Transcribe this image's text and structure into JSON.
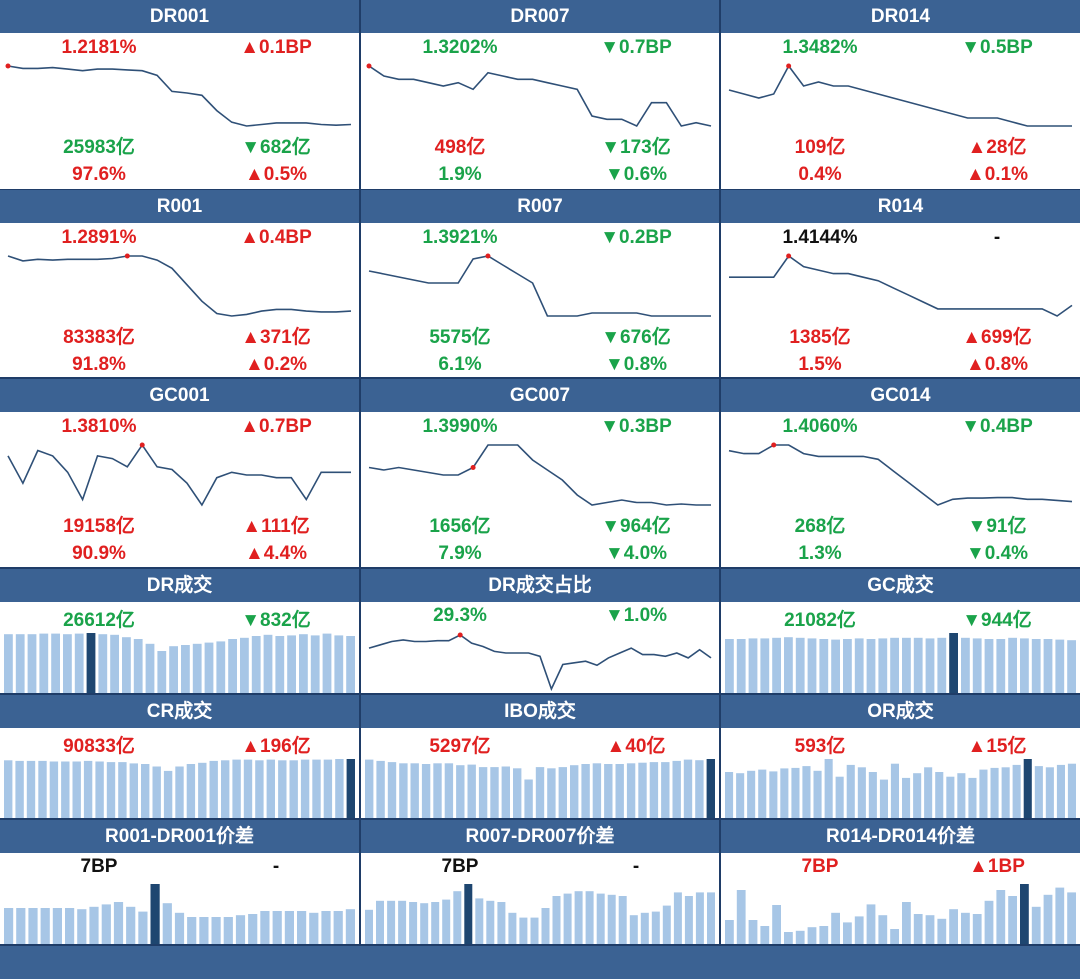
{
  "colors": {
    "header": "#3b6293",
    "bg": "#1f3d68",
    "line": "#2f5077",
    "bar": "#a7c6e6",
    "bar_highlight": "#1e4670",
    "red": "#e02020",
    "green": "#1aa34a",
    "black": "#111111"
  },
  "panels": [
    {
      "id": "dr001",
      "title": "DR001",
      "type": "rate",
      "rate": "1.2181%",
      "rate_color": "red",
      "change": "▲0.1BP",
      "change_color": "red",
      "volume": "25983亿",
      "volume_color": "green",
      "vol_change": "▼682亿",
      "vol_change_color": "green",
      "share": "97.6%",
      "share_color": "red",
      "share_change": "▲0.5%",
      "share_change_color": "red",
      "chart_data": {
        "type": "line",
        "values": [
          1.2181,
          1.215,
          1.215,
          1.216,
          1.214,
          1.212,
          1.214,
          1.214,
          1.213,
          1.212,
          1.206,
          1.185,
          1.183,
          1.18,
          1.16,
          1.145,
          1.14,
          1.142,
          1.144,
          1.144,
          1.144,
          1.142,
          1.141,
          1.142
        ],
        "highlight_index": 0
      }
    },
    {
      "id": "dr007",
      "title": "DR007",
      "type": "rate",
      "rate": "1.3202%",
      "rate_color": "green",
      "change": "▼0.7BP",
      "change_color": "green",
      "volume": "498亿",
      "volume_color": "red",
      "vol_change": "▼173亿",
      "vol_change_color": "green",
      "share": "1.9%",
      "share_color": "green",
      "share_change": "▼0.6%",
      "share_change_color": "green",
      "chart_data": {
        "type": "line",
        "values": [
          1.4,
          1.37,
          1.36,
          1.36,
          1.35,
          1.34,
          1.35,
          1.33,
          1.38,
          1.37,
          1.36,
          1.36,
          1.35,
          1.34,
          1.33,
          1.25,
          1.24,
          1.24,
          1.22,
          1.29,
          1.29,
          1.22,
          1.23,
          1.22
        ],
        "highlight_index": 0
      }
    },
    {
      "id": "dr014",
      "title": "DR014",
      "type": "rate",
      "rate": "1.3482%",
      "rate_color": "green",
      "change": "▼0.5BP",
      "change_color": "green",
      "volume": "109亿",
      "volume_color": "red",
      "vol_change": "▲28亿",
      "vol_change_color": "red",
      "share": "0.4%",
      "share_color": "red",
      "share_change": "▲0.1%",
      "share_change_color": "red",
      "chart_data": {
        "type": "line",
        "values": [
          1.44,
          1.43,
          1.42,
          1.43,
          1.5,
          1.45,
          1.46,
          1.45,
          1.45,
          1.44,
          1.43,
          1.42,
          1.41,
          1.4,
          1.39,
          1.38,
          1.37,
          1.37,
          1.37,
          1.36,
          1.35,
          1.35,
          1.35,
          1.35
        ],
        "highlight_index": 4
      }
    },
    {
      "id": "r001",
      "title": "R001",
      "type": "rate",
      "rate": "1.2891%",
      "rate_color": "red",
      "change": "▲0.4BP",
      "change_color": "red",
      "volume": "83383亿",
      "volume_color": "red",
      "vol_change": "▲371亿",
      "vol_change_color": "red",
      "share": "91.8%",
      "share_color": "red",
      "share_change": "▲0.2%",
      "share_change_color": "red",
      "chart_data": {
        "type": "line",
        "values": [
          1.285,
          1.279,
          1.281,
          1.28,
          1.281,
          1.281,
          1.281,
          1.282,
          1.285,
          1.285,
          1.28,
          1.27,
          1.25,
          1.23,
          1.215,
          1.212,
          1.214,
          1.218,
          1.22,
          1.22,
          1.218,
          1.217,
          1.217,
          1.218
        ],
        "highlight_index": 8
      }
    },
    {
      "id": "r007",
      "title": "R007",
      "type": "rate",
      "rate": "1.3921%",
      "rate_color": "green",
      "change": "▼0.2BP",
      "change_color": "green",
      "volume": "5575亿",
      "volume_color": "green",
      "vol_change": "▼676亿",
      "vol_change_color": "green",
      "share": "6.1%",
      "share_color": "green",
      "share_change": "▼0.8%",
      "share_change_color": "green",
      "chart_data": {
        "type": "line",
        "values": [
          1.45,
          1.44,
          1.43,
          1.42,
          1.41,
          1.41,
          1.41,
          1.49,
          1.5,
          1.47,
          1.44,
          1.41,
          1.3,
          1.3,
          1.3,
          1.31,
          1.31,
          1.31,
          1.31,
          1.3,
          1.3,
          1.3,
          1.3,
          1.3
        ],
        "highlight_index": 8
      }
    },
    {
      "id": "r014",
      "title": "R014",
      "type": "rate",
      "rate": "1.4144%",
      "rate_color": "black",
      "change": "-",
      "change_color": "black",
      "volume": "1385亿",
      "volume_color": "red",
      "vol_change": "▲699亿",
      "vol_change_color": "red",
      "share": "1.5%",
      "share_color": "red",
      "share_change": "▲0.8%",
      "share_change_color": "red",
      "chart_data": {
        "type": "line",
        "values": [
          1.44,
          1.44,
          1.44,
          1.44,
          1.5,
          1.47,
          1.46,
          1.45,
          1.45,
          1.44,
          1.43,
          1.41,
          1.39,
          1.37,
          1.35,
          1.35,
          1.35,
          1.35,
          1.35,
          1.35,
          1.35,
          1.35,
          1.33,
          1.36
        ],
        "highlight_index": 4
      }
    },
    {
      "id": "gc001",
      "title": "GC001",
      "type": "rate",
      "rate": "1.3810%",
      "rate_color": "red",
      "change": "▲0.7BP",
      "change_color": "red",
      "volume": "19158亿",
      "volume_color": "red",
      "vol_change": "▲111亿",
      "vol_change_color": "red",
      "share": "90.9%",
      "share_color": "red",
      "share_change": "▲4.4%",
      "share_change_color": "red",
      "chart_data": {
        "type": "line",
        "values": [
          1.36,
          1.31,
          1.37,
          1.36,
          1.33,
          1.28,
          1.36,
          1.355,
          1.34,
          1.38,
          1.34,
          1.335,
          1.31,
          1.27,
          1.32,
          1.33,
          1.325,
          1.325,
          1.32,
          1.32,
          1.28,
          1.33,
          1.33,
          1.33
        ],
        "highlight_index": 9
      }
    },
    {
      "id": "gc007",
      "title": "GC007",
      "type": "rate",
      "rate": "1.3990%",
      "rate_color": "green",
      "change": "▼0.3BP",
      "change_color": "green",
      "volume": "1656亿",
      "volume_color": "green",
      "vol_change": "▼964亿",
      "vol_change_color": "green",
      "share": "7.9%",
      "share_color": "green",
      "share_change": "▼4.0%",
      "share_change_color": "green",
      "chart_data": {
        "type": "line",
        "values": [
          1.445,
          1.44,
          1.445,
          1.44,
          1.435,
          1.43,
          1.43,
          1.445,
          1.49,
          1.49,
          1.49,
          1.46,
          1.44,
          1.42,
          1.39,
          1.37,
          1.375,
          1.38,
          1.375,
          1.375,
          1.37,
          1.372,
          1.37,
          1.37
        ],
        "highlight_index": 7
      }
    },
    {
      "id": "gc014",
      "title": "GC014",
      "type": "rate",
      "rate": "1.4060%",
      "rate_color": "green",
      "change": "▼0.4BP",
      "change_color": "green",
      "volume": "268亿",
      "volume_color": "green",
      "vol_change": "▼91亿",
      "vol_change_color": "green",
      "share": "1.3%",
      "share_color": "green",
      "share_change": "▼0.4%",
      "share_change_color": "green",
      "chart_data": {
        "type": "line",
        "values": [
          1.455,
          1.45,
          1.45,
          1.465,
          1.465,
          1.45,
          1.445,
          1.445,
          1.445,
          1.445,
          1.44,
          1.42,
          1.4,
          1.38,
          1.36,
          1.37,
          1.372,
          1.372,
          1.373,
          1.373,
          1.37,
          1.37,
          1.368,
          1.366
        ],
        "highlight_index": 3
      }
    },
    {
      "id": "dr_vol",
      "title": "DR成交",
      "type": "bars",
      "main": "26612亿",
      "main_color": "green",
      "change": "▼832亿",
      "change_color": "green",
      "chart_data": {
        "type": "bar",
        "values": [
          98,
          98,
          98,
          99,
          99,
          98,
          99,
          100,
          98,
          97,
          93,
          90,
          82,
          70,
          78,
          80,
          82,
          84,
          86,
          90,
          92,
          95,
          97,
          95,
          96,
          98,
          96,
          99,
          96,
          95
        ],
        "highlight_index": 7
      }
    },
    {
      "id": "dr_share",
      "title": "DR成交占比",
      "type": "line_only",
      "main": "29.3%",
      "main_color": "green",
      "change": "▼1.0%",
      "change_color": "green",
      "chart_data": {
        "type": "line",
        "values": [
          31.0,
          31.4,
          31.8,
          32.0,
          31.8,
          31.8,
          31.9,
          31.9,
          32.6,
          31.6,
          31.2,
          30.6,
          30.4,
          30.4,
          30.4,
          30.0,
          26.0,
          29.0,
          29.2,
          29.4,
          28.9,
          29.8,
          30.4,
          31.0,
          30.2,
          30.2,
          30.0,
          30.4,
          29.8,
          30.8,
          29.8
        ],
        "highlight_index": 8
      }
    },
    {
      "id": "gc_vol",
      "title": "GC成交",
      "type": "bars",
      "main": "21082亿",
      "main_color": "green",
      "change": "▼944亿",
      "change_color": "green",
      "chart_data": {
        "type": "bar",
        "values": [
          90,
          90,
          91,
          91,
          92,
          93,
          92,
          91,
          90,
          89,
          90,
          91,
          90,
          91,
          92,
          92,
          92,
          91,
          92,
          100,
          92,
          91,
          90,
          90,
          92,
          91,
          90,
          90,
          89,
          88
        ],
        "highlight_index": 19
      }
    },
    {
      "id": "cr_vol",
      "title": "CR成交",
      "type": "bars",
      "main": "90833亿",
      "main_color": "red",
      "change": "▲196亿",
      "change_color": "red",
      "chart_data": {
        "type": "bar",
        "values": [
          92,
          91,
          91,
          91,
          90,
          90,
          90,
          91,
          90,
          89,
          89,
          87,
          86,
          82,
          75,
          82,
          86,
          88,
          91,
          92,
          93,
          93,
          92,
          93,
          92,
          92,
          93,
          93,
          93,
          94,
          94
        ],
        "highlight_index": 30
      }
    },
    {
      "id": "ibo_vol",
      "title": "IBO成交",
      "type": "bars",
      "main": "5297亿",
      "main_color": "red",
      "change": "▲40亿",
      "change_color": "red",
      "chart_data": {
        "type": "bar",
        "values": [
          94,
          92,
          90,
          88,
          88,
          87,
          88,
          88,
          85,
          86,
          82,
          82,
          83,
          80,
          62,
          82,
          80,
          82,
          85,
          87,
          88,
          87,
          87,
          88,
          89,
          90,
          90,
          92,
          94,
          93,
          95
        ],
        "highlight_index": 30
      }
    },
    {
      "id": "or_vol",
      "title": "OR成交",
      "type": "bars",
      "main": "593亿",
      "main_color": "red",
      "change": "▲15亿",
      "change_color": "red",
      "chart_data": {
        "type": "bar",
        "values": [
          78,
          76,
          80,
          82,
          79,
          84,
          85,
          88,
          80,
          100,
          70,
          90,
          86,
          78,
          65,
          92,
          68,
          76,
          86,
          78,
          70,
          76,
          68,
          82,
          85,
          86,
          90,
          100,
          88,
          86,
          90,
          92
        ],
        "highlight_index": 27
      }
    },
    {
      "id": "r001_dr001",
      "title": "R001-DR001价差",
      "type": "bars",
      "main": "7BP",
      "main_color": "black",
      "change": "-",
      "change_color": "black",
      "chart_data": {
        "type": "bar",
        "values": [
          60,
          60,
          60,
          60,
          60,
          60,
          58,
          62,
          66,
          70,
          62,
          54,
          100,
          68,
          52,
          45,
          45,
          45,
          45,
          48,
          50,
          55,
          55,
          55,
          55,
          52,
          55,
          55,
          58
        ],
        "highlight_index": 12
      }
    },
    {
      "id": "r007_dr007",
      "title": "R007-DR007价差",
      "type": "bars",
      "main": "7BP",
      "main_color": "black",
      "change": "-",
      "change_color": "black",
      "chart_data": {
        "type": "bar",
        "values": [
          57,
          72,
          72,
          72,
          70,
          68,
          70,
          74,
          88,
          100,
          76,
          72,
          70,
          52,
          44,
          44,
          60,
          80,
          84,
          88,
          88,
          84,
          82,
          80,
          48,
          52,
          54,
          64,
          86,
          80,
          86,
          86
        ],
        "highlight_index": 9
      }
    },
    {
      "id": "r014_dr014",
      "title": "R014-DR014价差",
      "type": "bars",
      "main": "7BP",
      "main_color": "red",
      "change": "▲1BP",
      "change_color": "red",
      "chart_data": {
        "type": "bar",
        "values": [
          40,
          90,
          40,
          30,
          65,
          20,
          22,
          28,
          30,
          52,
          36,
          46,
          66,
          48,
          25,
          70,
          50,
          48,
          42,
          58,
          52,
          50,
          72,
          90,
          80,
          100,
          62,
          82,
          94,
          86
        ],
        "highlight_index": 25
      }
    }
  ]
}
